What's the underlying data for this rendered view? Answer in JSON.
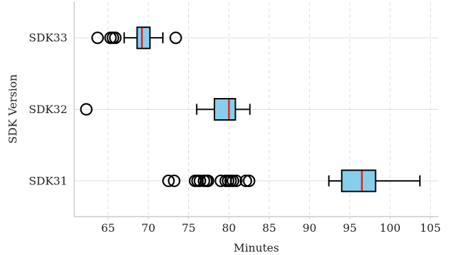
{
  "chart_data": {
    "type": "boxplot",
    "orientation": "horizontal",
    "xlabel": "Minutes",
    "ylabel": "SDK Version",
    "xlim": [
      60.8,
      106.0
    ],
    "xticks": [
      65,
      70,
      75,
      80,
      85,
      90,
      95,
      100,
      105
    ],
    "grid": {
      "x": true,
      "y": true
    },
    "colors": {
      "box_fill": "#87ceeb",
      "median": "#dd2222",
      "edge": "#000000",
      "grid": "#dddddd"
    },
    "categories": [
      "SDK31",
      "SDK32",
      "SDK33"
    ],
    "boxes": [
      {
        "name": "SDK31",
        "whisker_low": 92.4,
        "q1": 94.0,
        "median": 96.5,
        "q3": 98.2,
        "whisker_high": 103.7,
        "outliers": [
          72.5,
          73.2,
          75.8,
          76.1,
          76.4,
          76.9,
          77.2,
          77.4,
          79.0,
          79.6,
          79.9,
          80.2,
          80.5,
          80.9,
          82.1,
          82.5
        ]
      },
      {
        "name": "SDK32",
        "whisker_low": 76.0,
        "q1": 78.2,
        "median": 80.0,
        "q3": 80.8,
        "whisker_high": 82.6,
        "outliers": [
          62.3
        ]
      },
      {
        "name": "SDK33",
        "whisker_low": 67.0,
        "q1": 68.6,
        "median": 69.2,
        "q3": 70.2,
        "whisker_high": 71.8,
        "outliers": [
          63.7,
          65.3,
          65.6,
          65.9,
          73.4
        ]
      }
    ]
  }
}
